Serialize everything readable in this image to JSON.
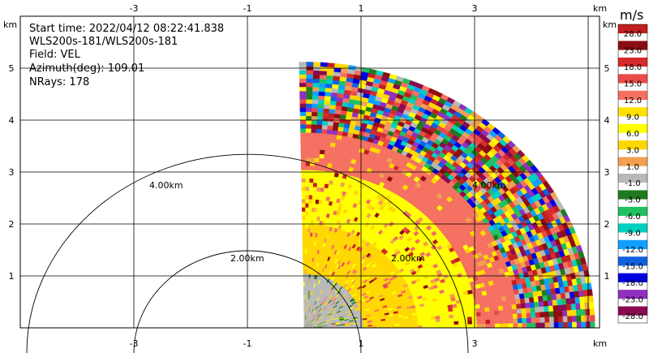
{
  "info": {
    "start_time": "Start time: 2022/04/12 08:22:41.838",
    "instrument": "WLS200s-181/WLS200s-181",
    "field": "Field: VEL",
    "azimuth": "Azimuth(deg): 109.01",
    "nrays": "NRays: 178"
  },
  "axes": {
    "unit_label": "km",
    "x_ticks": [
      "-3",
      "-1",
      "1",
      "3"
    ],
    "y_ticks": [
      "1",
      "2",
      "3",
      "4",
      "5"
    ]
  },
  "range_rings": [
    "2.00km",
    "4.00km",
    "2.00km",
    "4.00km"
  ],
  "colorbar": {
    "unit": "m/s",
    "labels": [
      "28.0",
      "23.0",
      "18.0",
      "15.0",
      "12.0",
      "9.0",
      "6.0",
      "3.0",
      "1.0",
      "-1.0",
      "-3.0",
      "-6.0",
      "-9.0",
      "-12.0",
      "-15.0",
      "-18.0",
      "-23.0",
      "-28.0"
    ],
    "colors": [
      "#c01f1f",
      "#8c0d13",
      "#d52b2b",
      "#e84a4a",
      "#f57060",
      "#ffe100",
      "#ffff00",
      "#ffd700",
      "#f0a050",
      "#b8b8b8",
      "#1f7a1f",
      "#20c060",
      "#00d0c0",
      "#10a0ff",
      "#1060e0",
      "#0000e0",
      "#9030c0",
      "#8b0a50"
    ]
  },
  "chart_data": {
    "type": "heatmap",
    "title": "",
    "xlabel": "km",
    "ylabel": "km",
    "xlim": [
      -3.3,
      4.5
    ],
    "ylim": [
      0,
      5.3
    ],
    "x_ticks": [
      -3,
      -1,
      1,
      3
    ],
    "y_ticks": [
      1,
      2,
      3,
      4,
      5
    ],
    "field": "VEL",
    "units": "m/s",
    "range_rings_km": [
      2,
      4
    ],
    "data_extent": {
      "x_min_km": 0,
      "max_range_km": 5.1,
      "sector_deg": [
        0,
        90
      ]
    },
    "colorbar_range": [
      -28,
      28
    ],
    "radial_profile": [
      {
        "range_km": [
          0,
          1.0
        ],
        "dominant_color": "#b8b8b8",
        "description_values": "-1.0 to 1.0"
      },
      {
        "range_km": [
          1.0,
          2.0
        ],
        "dominant_color": "#ffd700",
        "description_values": "3.0 to 6.0"
      },
      {
        "range_km": [
          2.0,
          3.0
        ],
        "dominant_color": "#ffff00",
        "description_values": "6.0 to 9.0"
      },
      {
        "range_km": [
          3.0,
          3.7
        ],
        "dominant_color": "#f57060",
        "description_values": "12.0 mixed"
      },
      {
        "range_km": [
          3.7,
          5.1
        ],
        "dominant_color": "noise",
        "description_values": "-28.0 to 28.0"
      }
    ],
    "grid": true
  }
}
